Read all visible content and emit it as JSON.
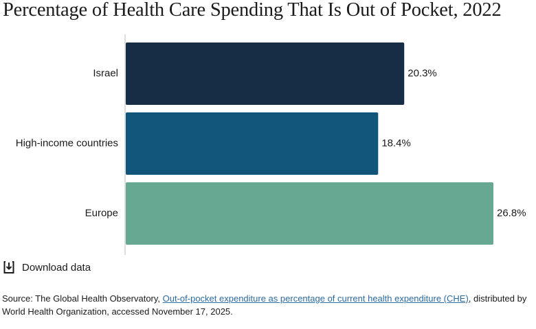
{
  "title": "Percentage of Health Care Spending That Is Out of Pocket, 2022",
  "download": {
    "label": "Download data",
    "icon": "download-icon"
  },
  "source": {
    "prefix": "Source: The Global Health Observatory, ",
    "link_text": "Out-of-pocket expenditure as percentage of current health expenditure (CHE)",
    "suffix": ", distributed by World Health Organization, accessed November 17, 2025."
  },
  "chart_data": {
    "type": "bar",
    "orientation": "horizontal",
    "title": "Percentage of Health Care Spending That Is Out of Pocket, 2022",
    "xlabel": "",
    "ylabel": "",
    "categories": [
      "Israel",
      "High-income countries",
      "Europe"
    ],
    "values": [
      20.3,
      18.4,
      26.8
    ],
    "value_labels": [
      "20.3%",
      "18.4%",
      "26.8%"
    ],
    "colors": [
      "#172c45",
      "#12557b",
      "#67a892"
    ],
    "xlim": [
      0,
      26.8
    ],
    "grid": false,
    "legend": "none"
  }
}
